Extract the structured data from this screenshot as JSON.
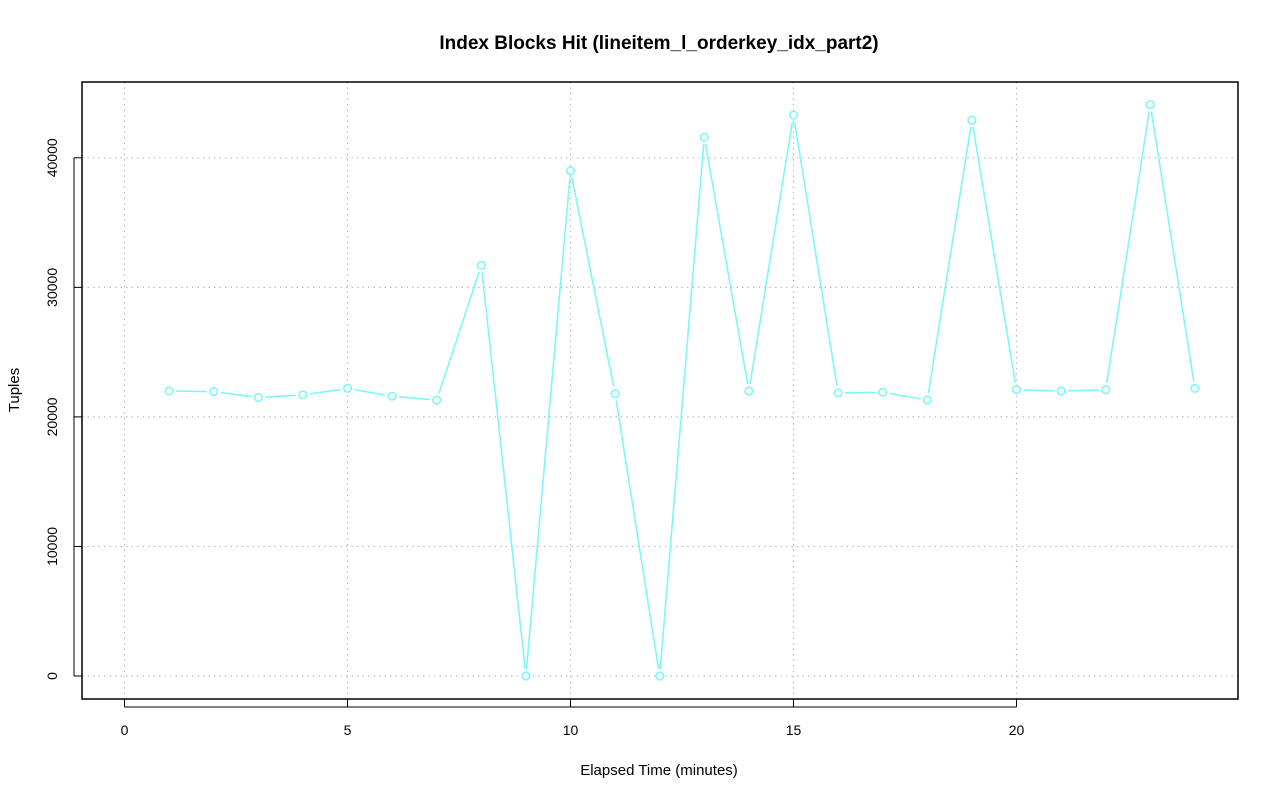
{
  "chart_data": {
    "type": "line",
    "title": "Index Blocks Hit (lineitem_l_orderkey_idx_part2)",
    "xlabel": "Elapsed Time (minutes)",
    "ylabel": "Tuples",
    "xlim": [
      0,
      25
    ],
    "ylim": [
      0,
      45000
    ],
    "xticks": [
      0,
      5,
      10,
      15,
      20
    ],
    "yticks": [
      0,
      10000,
      20000,
      30000,
      40000
    ],
    "grid": true,
    "color": "#7ff7f7",
    "series": [
      {
        "x": [
          1,
          2,
          3,
          4,
          5,
          6,
          7,
          8,
          9,
          10,
          11,
          12,
          13,
          14,
          15,
          16,
          17,
          18,
          19,
          20,
          21,
          22,
          23,
          24
        ],
        "values": [
          22000,
          21950,
          21500,
          21700,
          22200,
          21600,
          21300,
          31700,
          0,
          39000,
          21800,
          0,
          41600,
          22000,
          43300,
          21850,
          21900,
          21300,
          42900,
          22100,
          22000,
          22100,
          44100,
          22200
        ]
      }
    ]
  }
}
